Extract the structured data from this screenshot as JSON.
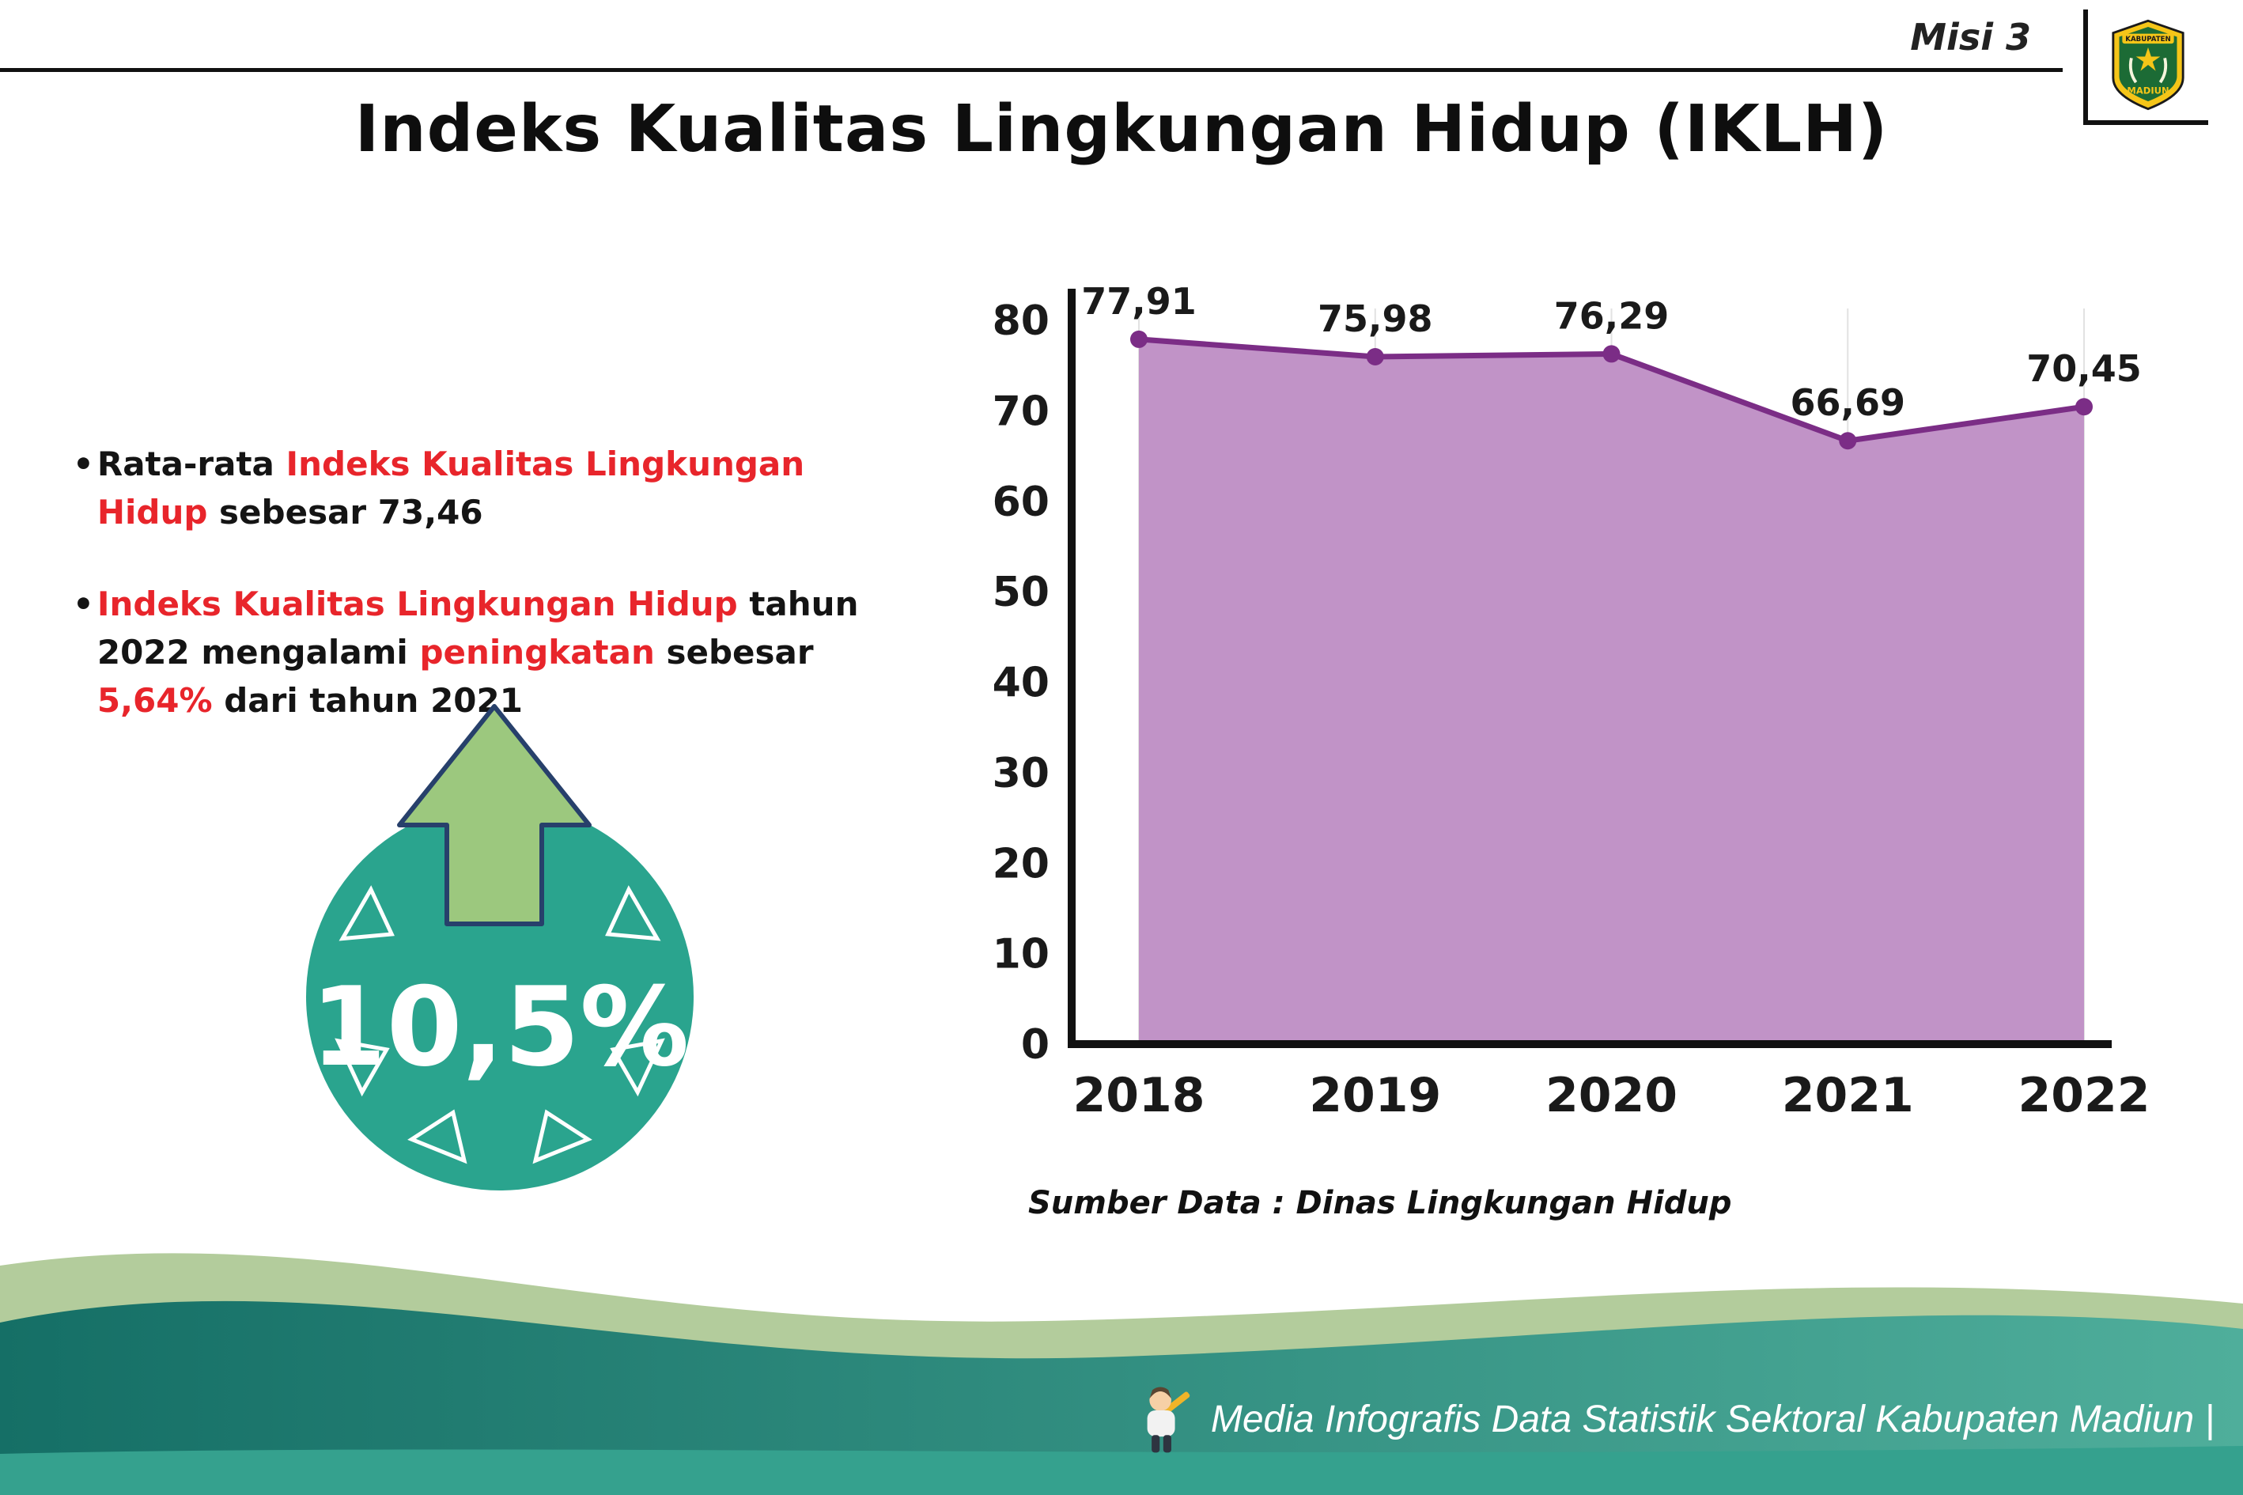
{
  "page": {
    "misi_label": "Misi 3",
    "title": "Indeks Kualitas Lingkungan Hidup (IKLH)"
  },
  "logo": {
    "line1": "KABUPATEN",
    "line2": "MADIUN"
  },
  "bullets": {
    "marker": "•",
    "item1": {
      "seg1": "Rata-rata ",
      "seg2": "Indeks Kualitas Lingkungan Hidup",
      "seg3": " sebesar 73,46"
    },
    "item2": {
      "seg1": "Indeks Kualitas Lingkungan Hidup",
      "seg2": " tahun 2022 mengalami ",
      "seg3": "peningkatan",
      "seg4": " sebesar ",
      "seg5": "5,64%",
      "seg6": " dari tahun 2021"
    }
  },
  "badge": {
    "value": "10,5%"
  },
  "chart_data": {
    "type": "area",
    "title": "Indeks Kualitas Lingkungan Hidup (IKLH)",
    "categories": [
      "2018",
      "2019",
      "2020",
      "2021",
      "2022"
    ],
    "values": [
      77.91,
      75.98,
      76.29,
      66.69,
      70.45
    ],
    "value_labels": [
      "77,91",
      "75,98",
      "76,29",
      "66,69",
      "70,45"
    ],
    "xlabel": "",
    "ylabel": "",
    "ylim": [
      0,
      80
    ],
    "yticks": [
      0,
      10,
      20,
      30,
      40,
      50,
      60,
      70,
      80
    ],
    "grid": "vertical-light",
    "legend": "none",
    "line_color": "#7b2d86",
    "fill_color": "#c193c7",
    "source_note": "Sumber Data : Dinas Lingkungan Hidup"
  },
  "footer": {
    "credit": "Media Infografis Data Statistik Sektoral Kabupaten Madiun |"
  },
  "colors": {
    "accent_red": "#e8252b",
    "badge_teal": "#2aa48e",
    "arrow_green": "#9cc87e",
    "arrow_outline": "#27406b",
    "footer_green": "#b3cc9c",
    "footer_teal_dark": "#156f66",
    "footer_teal_light": "#4fae9b",
    "footer_band": "#35a18e"
  }
}
